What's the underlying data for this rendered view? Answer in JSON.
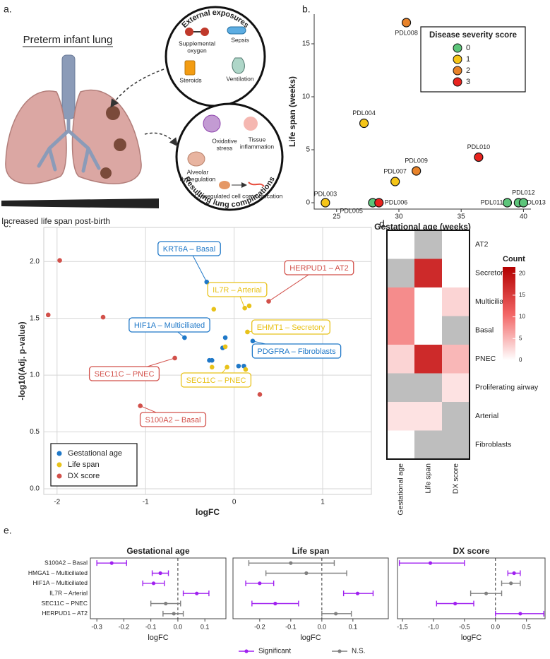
{
  "panel_labels": [
    "a.",
    "b.",
    "c.",
    "d.",
    "e."
  ],
  "illustration": {
    "title": "Preterm infant lung",
    "timeline": "Increased life span post-birth",
    "exposures": {
      "title": "External exposures",
      "items": [
        [
          "Supplemental",
          "oxygen"
        ],
        [
          "Sepsis"
        ],
        [
          "Steroids"
        ],
        [
          "Ventilation"
        ]
      ]
    },
    "complications": {
      "title": "Resulting lung complications",
      "items": [
        [
          "Oxidative",
          "stress"
        ],
        [
          "Tissue",
          "inflammation"
        ],
        [
          "Alveolar",
          "dysregulation"
        ],
        [
          "Dysregulated cell communication"
        ]
      ]
    }
  },
  "forest_legend": {
    "series": [
      {
        "name": "Significant",
        "color": "#a020f0"
      },
      {
        "name": "N.S.",
        "color": "#808080"
      }
    ]
  },
  "chart_data": [
    {
      "type": "scatter",
      "xlabel": "Gestational age (weeks)",
      "ylabel": "Life span (weeks)",
      "xlim": [
        23.2,
        40.6
      ],
      "ylim": [
        -0.6,
        17.8
      ],
      "xticks": [
        25,
        30,
        35,
        40
      ],
      "yticks": [
        0,
        5,
        10,
        15
      ],
      "grid": false,
      "legend_title": "Disease severity score",
      "legend": "top-right",
      "series": [
        {
          "name": "0",
          "color": "#5cc57a",
          "x": [
            27.9,
            38.7,
            39.6,
            40
          ],
          "values": [
            0,
            0,
            0,
            0
          ],
          "labels": [
            "PDL005",
            "PDL011",
            "PDL013",
            "PDL012"
          ]
        },
        {
          "name": "1",
          "color": "#f5c518",
          "x": [
            24.1,
            27.2,
            29.7
          ],
          "values": [
            0,
            7.5,
            2
          ],
          "labels": [
            "PDL003",
            "PDL004",
            "PDL007"
          ]
        },
        {
          "name": "2",
          "color": "#e8832a",
          "x": [
            30.6,
            31.4
          ],
          "values": [
            17,
            3
          ],
          "labels": [
            "PDL008",
            "PDL009"
          ]
        },
        {
          "name": "3",
          "color": "#e8231e",
          "x": [
            28.4,
            36.4
          ],
          "values": [
            0,
            4.3
          ],
          "labels": [
            "PDL006",
            "PDL010"
          ]
        }
      ]
    },
    {
      "type": "scatter",
      "xlabel": "logFC",
      "ylabel": "-log10(Adj. p-value)",
      "xlim": [
        -2.15,
        1.55
      ],
      "ylim": [
        -0.05,
        2.3
      ],
      "xticks": [
        -2,
        -1,
        0,
        1
      ],
      "yticks": [
        {
          "value": 0,
          "label": "0.0"
        },
        {
          "value": 0.5,
          "label": "0.5"
        },
        {
          "value": 1,
          "label": "1.0"
        },
        {
          "value": 1.5,
          "label": "1.5"
        },
        {
          "value": 2,
          "label": "2.0"
        }
      ],
      "grid": true,
      "legend": "bottom-left",
      "series": [
        {
          "name": "Gestational age",
          "color": "#1f78c8",
          "x": [
            -0.31,
            -0.56,
            0.21,
            -0.1,
            -0.13,
            -0.28,
            -0.25,
            0.05,
            0.11
          ],
          "values": [
            1.82,
            1.33,
            1.3,
            1.33,
            1.24,
            1.13,
            1.13,
            1.08,
            1.08
          ]
        },
        {
          "name": "Life span",
          "color": "#e8c21a",
          "x": [
            -0.23,
            0.12,
            0.17,
            0.15,
            -0.1,
            -0.08,
            -0.25,
            0.13
          ],
          "values": [
            1.58,
            1.59,
            1.61,
            1.38,
            1.25,
            1.07,
            1.07,
            1.05
          ]
        },
        {
          "name": "DX score",
          "color": "#d2504a",
          "x": [
            -1.97,
            -2.1,
            -1.48,
            -0.67,
            -1.06,
            0.39,
            0.29
          ],
          "values": [
            2.01,
            1.53,
            1.51,
            1.15,
            0.73,
            1.65,
            0.83
          ]
        }
      ],
      "annotations": [
        {
          "text": "KRT6A – Basal",
          "color": "#1f78c8"
        },
        {
          "text": "IL7R – Arterial",
          "color": "#e8c21a"
        },
        {
          "text": "HERPUD1 – AT2",
          "color": "#d2504a"
        },
        {
          "text": "HIF1A – Multiciliated",
          "color": "#1f78c8"
        },
        {
          "text": "EHMT1 – Secretory",
          "color": "#e8c21a"
        },
        {
          "text": "PDGFRA – Fibroblasts",
          "color": "#1f78c8"
        },
        {
          "text": "SEC11C – PNEC",
          "color": "#d2504a"
        },
        {
          "text": "SEC11C – PNEC",
          "color": "#e8c21a"
        },
        {
          "text": "S100A2 – Basal",
          "color": "#d2504a"
        }
      ]
    },
    {
      "type": "heatmap",
      "x_categories": [
        "Gestational age",
        "Life span",
        "DX score"
      ],
      "y_categories": [
        "AT2",
        "Secretory",
        "Multiciliated",
        "Basal",
        "PNEC",
        "Proliferating airway",
        "Arterial",
        "Fibroblasts"
      ],
      "values": [
        [
          0,
          null,
          0
        ],
        [
          null,
          17,
          0
        ],
        [
          8,
          0,
          3
        ],
        [
          8,
          0,
          null
        ],
        [
          3,
          17,
          5
        ],
        [
          null,
          null,
          2
        ],
        [
          2,
          2,
          null
        ],
        [
          0,
          null,
          null
        ]
      ],
      "colorbar_title": "Count",
      "zlim": [
        0,
        21.5
      ],
      "zticks": [
        0,
        5,
        10,
        15,
        20
      ],
      "colorscale": [
        "#ffffff",
        "#f26464",
        "#b30000"
      ],
      "na_color": "#bebebe"
    },
    {
      "type": "forest",
      "title": "Gestational age",
      "xlabel": "logFC",
      "categories": [
        "S100A2 – Basal",
        "HMGA1 – Multiciliated",
        "HIF1A – Multiciliated",
        "IL7R – Arterial",
        "SEC11C – PNEC",
        "HERPUD1 – AT2"
      ],
      "values": [
        -0.245,
        -0.065,
        -0.09,
        0.07,
        -0.045,
        -0.015
      ],
      "ci_low": [
        -0.3,
        -0.095,
        -0.13,
        0.02,
        -0.1,
        -0.055
      ],
      "ci_high": [
        -0.19,
        -0.035,
        -0.05,
        0.115,
        0.01,
        0.02
      ],
      "significant": [
        true,
        true,
        true,
        true,
        false,
        false
      ],
      "xlim": [
        -0.324,
        0.178
      ],
      "xticks": [
        -0.3,
        -0.2,
        -0.1,
        {
          "value": 0,
          "label": "0.0"
        },
        0.1
      ]
    },
    {
      "type": "forest",
      "title": "Life span",
      "xlabel": "logFC",
      "values": [
        -0.1,
        -0.05,
        -0.2,
        0.115,
        -0.15,
        0.045
      ],
      "ci_low": [
        -0.235,
        -0.18,
        -0.245,
        0.07,
        -0.225,
        0
      ],
      "ci_high": [
        0.04,
        0.08,
        -0.155,
        0.165,
        -0.075,
        0.095
      ],
      "significant": [
        false,
        false,
        true,
        true,
        true,
        false
      ],
      "xlim": [
        -0.286,
        0.214
      ],
      "xticks": [
        -0.2,
        -0.1,
        {
          "value": 0,
          "label": "0.0"
        },
        0.1
      ]
    },
    {
      "type": "forest",
      "title": "DX score",
      "xlabel": "logFC",
      "values": [
        -1.05,
        0.3,
        0.25,
        -0.15,
        -0.65,
        0.4
      ],
      "ci_low": [
        -1.55,
        0.2,
        0.1,
        -0.4,
        -0.95,
        0
      ],
      "ci_high": [
        -0.5,
        0.4,
        0.4,
        0.1,
        -0.35,
        0.78
      ],
      "significant": [
        true,
        true,
        false,
        false,
        true,
        true
      ],
      "xlim": [
        -1.58,
        0.8
      ],
      "xticks": [
        -1.5,
        {
          "value": -1,
          "label": "-1.0"
        },
        -0.5,
        {
          "value": 0,
          "label": "0.0"
        },
        0.5
      ]
    }
  ]
}
